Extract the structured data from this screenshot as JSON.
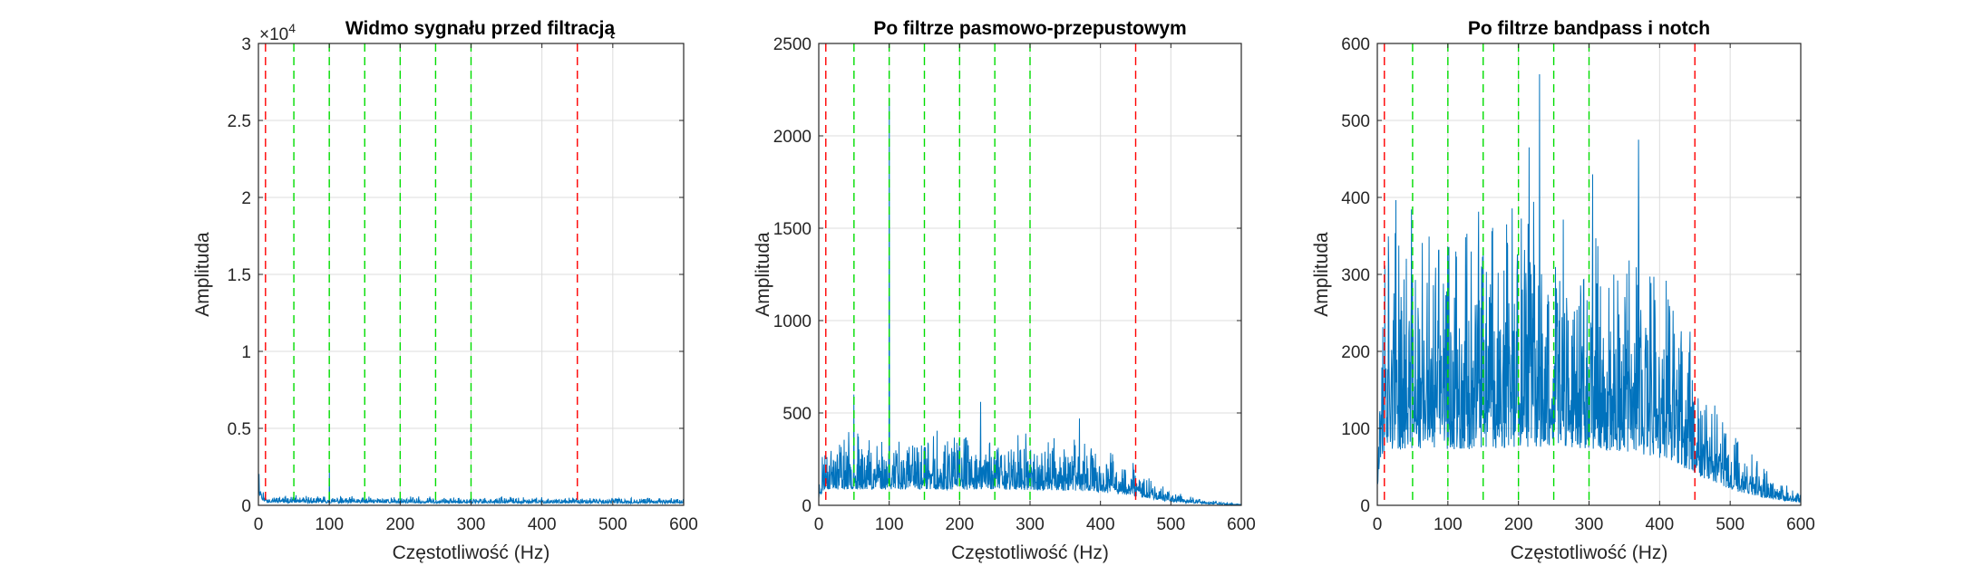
{
  "colors": {
    "signal": "#0072BD",
    "red_line": "#FF0000",
    "green_line": "#00DD00",
    "grid": "#DCDCDC",
    "axis": "#262626"
  },
  "chart_data": [
    {
      "type": "line",
      "title": "Widmo sygnału przed filtracją",
      "xlabel": "Częstotliwość (Hz)",
      "ylabel": "Amplituda",
      "xlim": [
        0,
        600
      ],
      "ylim": [
        0,
        30000
      ],
      "xticks": [
        0,
        100,
        200,
        300,
        400,
        500,
        600
      ],
      "xtick_labels": [
        "0",
        "100",
        "200",
        "300",
        "400",
        "500",
        "600"
      ],
      "yticks": [
        0,
        5000,
        10000,
        15000,
        20000,
        25000,
        30000
      ],
      "ytick_labels": [
        "0",
        "0.5",
        "1",
        "1.5",
        "2",
        "2.5",
        "3"
      ],
      "exponent_base": "×10",
      "exponent_power": "4",
      "grid": true,
      "red_dashed_x": [
        10,
        450
      ],
      "green_dashed_x": [
        50,
        100,
        150,
        200,
        250,
        300
      ],
      "spectrum": {
        "base": [
          [
            0,
            1600
          ],
          [
            3,
            900
          ],
          [
            8,
            500
          ],
          [
            15,
            350
          ],
          [
            100,
            300
          ],
          [
            300,
            280
          ],
          [
            450,
            260
          ],
          [
            600,
            250
          ]
        ],
        "noise": 0.5,
        "peaks": [
          [
            100,
            2300
          ]
        ],
        "seed": 11
      }
    },
    {
      "type": "line",
      "title": "Po filtrze pasmowo-przepustowym",
      "xlabel": "Częstotliwość (Hz)",
      "ylabel": "Amplituda",
      "xlim": [
        0,
        600
      ],
      "ylim": [
        0,
        2500
      ],
      "xticks": [
        0,
        100,
        200,
        300,
        400,
        500,
        600
      ],
      "xtick_labels": [
        "0",
        "100",
        "200",
        "300",
        "400",
        "500",
        "600"
      ],
      "yticks": [
        0,
        500,
        1000,
        1500,
        2000,
        2500
      ],
      "ytick_labels": [
        "0",
        "500",
        "1000",
        "1500",
        "2000",
        "2500"
      ],
      "grid": true,
      "red_dashed_x": [
        10,
        450
      ],
      "green_dashed_x": [
        50,
        100,
        150,
        200,
        250,
        300
      ],
      "spectrum": {
        "base": [
          [
            0,
            60
          ],
          [
            5,
            150
          ],
          [
            10,
            190
          ],
          [
            100,
            190
          ],
          [
            300,
            185
          ],
          [
            380,
            170
          ],
          [
            430,
            130
          ],
          [
            470,
            80
          ],
          [
            500,
            40
          ],
          [
            550,
            15
          ],
          [
            600,
            5
          ]
        ],
        "noise": 0.55,
        "peaks": [
          [
            50,
            600
          ],
          [
            100,
            2200
          ],
          [
            230,
            560
          ],
          [
            370,
            470
          ]
        ],
        "seed": 23
      }
    },
    {
      "type": "line",
      "title": "Po filtrze bandpass i notch",
      "xlabel": "Częstotliwość (Hz)",
      "ylabel": "Amplituda",
      "xlim": [
        0,
        600
      ],
      "ylim": [
        0,
        600
      ],
      "xticks": [
        0,
        100,
        200,
        300,
        400,
        500,
        600
      ],
      "xtick_labels": [
        "0",
        "100",
        "200",
        "300",
        "400",
        "500",
        "600"
      ],
      "yticks": [
        0,
        100,
        200,
        300,
        400,
        500,
        600
      ],
      "ytick_labels": [
        "0",
        "100",
        "200",
        "300",
        "400",
        "500",
        "600"
      ],
      "grid": true,
      "red_dashed_x": [
        10,
        450
      ],
      "green_dashed_x": [
        50,
        100,
        150,
        200,
        250,
        300
      ],
      "spectrum": {
        "base": [
          [
            0,
            60
          ],
          [
            5,
            140
          ],
          [
            10,
            180
          ],
          [
            100,
            180
          ],
          [
            250,
            190
          ],
          [
            350,
            175
          ],
          [
            420,
            140
          ],
          [
            460,
            90
          ],
          [
            500,
            50
          ],
          [
            550,
            22
          ],
          [
            600,
            8
          ]
        ],
        "noise": 0.6,
        "peaks": [
          [
            230,
            560
          ],
          [
            305,
            430
          ],
          [
            370,
            475
          ],
          [
            215,
            465
          ]
        ],
        "seed": 37
      }
    }
  ]
}
